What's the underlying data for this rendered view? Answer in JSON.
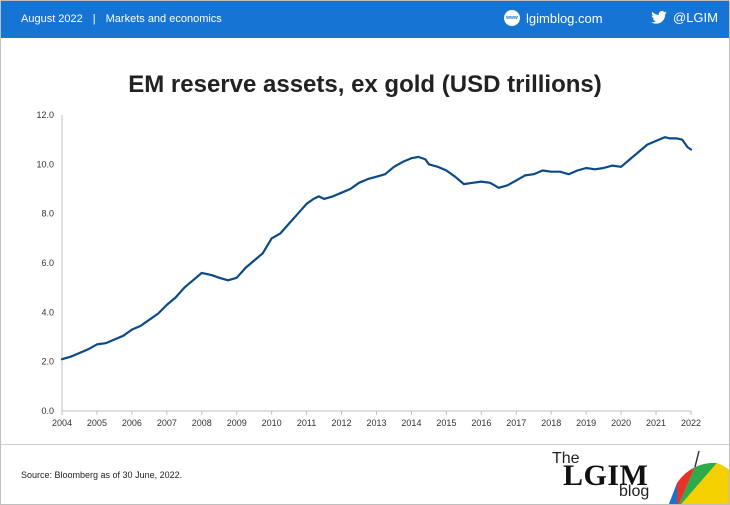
{
  "header": {
    "date": "August 2022",
    "separator": "|",
    "section": "Markets and economics",
    "site": "lgimblog.com",
    "site_badge": "www",
    "handle": "@LGIM"
  },
  "footer": {
    "source": "Source: Bloomberg as of 30 June, 2022.",
    "brand_the": "The",
    "brand_name": "LGIM",
    "brand_blog": "blog"
  },
  "colors": {
    "header_bg": "#1675d4",
    "line": "#0b4a86"
  },
  "chart_data": {
    "type": "line",
    "title": "EM reserve assets, ex gold (USD trillions)",
    "xlabel": "",
    "ylabel": "",
    "xlim": [
      2004,
      2022
    ],
    "ylim": [
      0,
      12
    ],
    "yticks": [
      "0.0",
      "2.0",
      "4.0",
      "6.0",
      "8.0",
      "10.0",
      "12.0"
    ],
    "xticks": [
      "2004",
      "2005",
      "2006",
      "2007",
      "2008",
      "2009",
      "2010",
      "2011",
      "2012",
      "2013",
      "2014",
      "2015",
      "2016",
      "2017",
      "2018",
      "2019",
      "2020",
      "2021",
      "2022"
    ],
    "grid": false,
    "legend": "none",
    "x": [
      2004.0,
      2004.25,
      2004.5,
      2004.75,
      2005.0,
      2005.25,
      2005.5,
      2005.75,
      2006.0,
      2006.25,
      2006.5,
      2006.75,
      2007.0,
      2007.25,
      2007.5,
      2007.75,
      2008.0,
      2008.15,
      2008.3,
      2008.5,
      2008.75,
      2009.0,
      2009.25,
      2009.5,
      2009.75,
      2010.0,
      2010.25,
      2010.5,
      2010.75,
      2011.0,
      2011.2,
      2011.35,
      2011.5,
      2011.75,
      2012.0,
      2012.25,
      2012.5,
      2012.75,
      2013.0,
      2013.25,
      2013.5,
      2013.75,
      2014.0,
      2014.2,
      2014.4,
      2014.5,
      2014.75,
      2015.0,
      2015.25,
      2015.5,
      2015.75,
      2016.0,
      2016.25,
      2016.5,
      2016.75,
      2017.0,
      2017.25,
      2017.5,
      2017.75,
      2018.0,
      2018.25,
      2018.5,
      2018.75,
      2019.0,
      2019.25,
      2019.5,
      2019.75,
      2020.0,
      2020.25,
      2020.5,
      2020.75,
      2021.0,
      2021.25,
      2021.4,
      2021.6,
      2021.75,
      2021.9,
      2022.0
    ],
    "values": [
      2.1,
      2.2,
      2.35,
      2.5,
      2.7,
      2.75,
      2.9,
      3.05,
      3.3,
      3.45,
      3.7,
      3.95,
      4.3,
      4.6,
      5.0,
      5.3,
      5.6,
      5.55,
      5.5,
      5.4,
      5.3,
      5.4,
      5.8,
      6.1,
      6.4,
      7.0,
      7.2,
      7.6,
      8.0,
      8.4,
      8.6,
      8.7,
      8.6,
      8.7,
      8.85,
      9.0,
      9.25,
      9.4,
      9.5,
      9.6,
      9.9,
      10.1,
      10.25,
      10.3,
      10.2,
      10.0,
      9.9,
      9.75,
      9.5,
      9.2,
      9.25,
      9.3,
      9.25,
      9.05,
      9.15,
      9.35,
      9.55,
      9.6,
      9.75,
      9.7,
      9.7,
      9.6,
      9.75,
      9.85,
      9.8,
      9.85,
      9.95,
      9.9,
      10.2,
      10.5,
      10.8,
      10.95,
      11.1,
      11.05,
      11.05,
      11.0,
      10.7,
      10.6
    ]
  }
}
